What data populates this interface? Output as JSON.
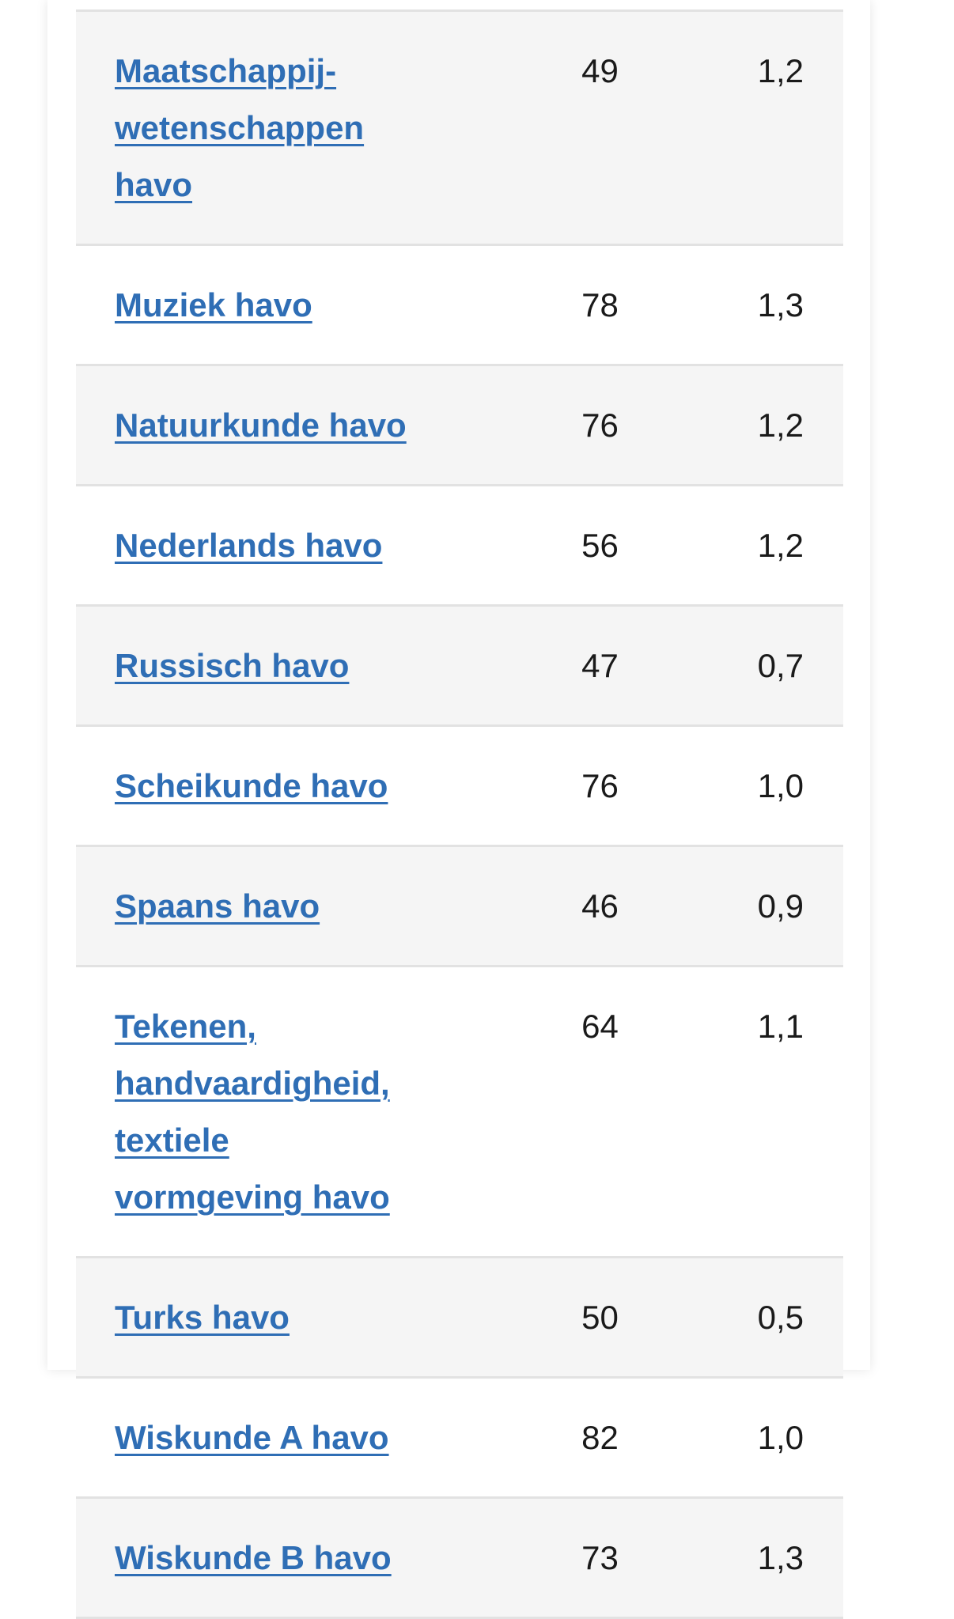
{
  "table": {
    "rows": [
      {
        "subject": "Maatschappij-wetenschappen havo",
        "value1": "49",
        "value2": "1,2"
      },
      {
        "subject": "Muziek havo",
        "value1": "78",
        "value2": "1,3"
      },
      {
        "subject": "Natuurkunde havo",
        "value1": "76",
        "value2": "1,2"
      },
      {
        "subject": "Nederlands havo",
        "value1": "56",
        "value2": "1,2"
      },
      {
        "subject": "Russisch havo",
        "value1": "47",
        "value2": "0,7"
      },
      {
        "subject": "Scheikunde havo",
        "value1": "76",
        "value2": "1,0"
      },
      {
        "subject": "Spaans havo",
        "value1": "46",
        "value2": "0,9"
      },
      {
        "subject": "Tekenen, handvaardigheid, textiele vormgeving havo",
        "value1": "64",
        "value2": "1,1"
      },
      {
        "subject": "Turks havo",
        "value1": "50",
        "value2": "0,5"
      },
      {
        "subject": "Wiskunde A havo",
        "value1": "82",
        "value2": "1,0"
      },
      {
        "subject": "Wiskunde B havo",
        "value1": "73",
        "value2": "1,3"
      }
    ]
  },
  "colors": {
    "link": "#2f6eb5",
    "stripe": "#f5f5f5",
    "divider": "#e2e2e2",
    "text": "#1a1a1a"
  }
}
